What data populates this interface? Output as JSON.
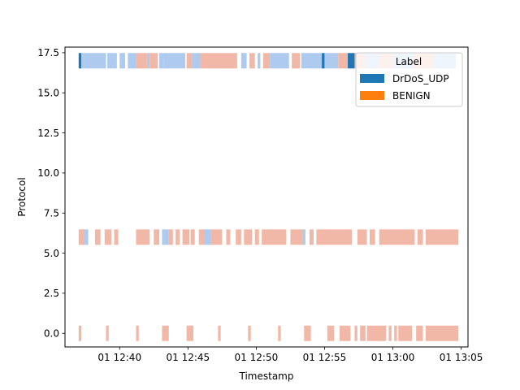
{
  "chart_data": {
    "type": "heatmap",
    "title": "",
    "xlabel": "Timestamp",
    "ylabel": "Protocol",
    "x_axis": {
      "type": "time",
      "range": [
        "12:36:00",
        "13:05:30"
      ],
      "ticks": [
        "12:40",
        "12:45",
        "12:50",
        "12:55",
        "13:00",
        "13:05"
      ],
      "tick_labels": [
        "01 12:40",
        "01 12:45",
        "01 12:50",
        "01 12:55",
        "01 13:00",
        "01 13:05"
      ]
    },
    "y_axis": {
      "range": [
        -0.85,
        17.85
      ],
      "ticks": [
        0.0,
        2.5,
        5.0,
        7.5,
        10.0,
        12.5,
        15.0,
        17.5
      ],
      "tick_labels": [
        "0.0",
        "2.5",
        "5.0",
        "7.5",
        "10.0",
        "12.5",
        "15.0",
        "17.5"
      ]
    },
    "grid": false,
    "legend": {
      "title": "Label",
      "placement": "top-right",
      "entries": [
        {
          "name": "DrDoS_UDP",
          "color": "#1f77b4"
        },
        {
          "name": "BENIGN",
          "color": "#ff7f0e"
        }
      ]
    },
    "colors": {
      "udp_dense": "#1f77b4",
      "udp_light": "#aecbef",
      "benign": "#f2b8a7",
      "axis": "#000000"
    },
    "bands": [
      {
        "protocol": 17,
        "segments": [
          {
            "start": "12:37:00",
            "end": "12:37:12",
            "label": "DrDoS_UDP",
            "intensity": "high"
          },
          {
            "start": "12:37:12",
            "end": "12:39:00",
            "label": "DrDoS_UDP",
            "intensity": "low"
          },
          {
            "start": "12:39:06",
            "end": "12:39:48",
            "label": "DrDoS_UDP",
            "intensity": "low"
          },
          {
            "start": "12:40:00",
            "end": "12:40:24",
            "label": "DrDoS_UDP",
            "intensity": "low"
          },
          {
            "start": "12:40:36",
            "end": "12:41:12",
            "label": "DrDoS_UDP",
            "intensity": "low"
          },
          {
            "start": "12:41:12",
            "end": "12:42:00",
            "label": "BENIGN"
          },
          {
            "start": "12:42:00",
            "end": "12:42:12",
            "label": "DrDoS_UDP",
            "intensity": "low"
          },
          {
            "start": "12:42:12",
            "end": "12:42:48",
            "label": "BENIGN"
          },
          {
            "start": "12:42:54",
            "end": "12:43:12",
            "label": "DrDoS_UDP",
            "intensity": "low"
          },
          {
            "start": "12:43:12",
            "end": "12:44:48",
            "label": "DrDoS_UDP",
            "intensity": "low"
          },
          {
            "start": "12:44:54",
            "end": "12:45:18",
            "label": "BENIGN"
          },
          {
            "start": "12:45:18",
            "end": "12:45:54",
            "label": "DrDoS_UDP",
            "intensity": "low"
          },
          {
            "start": "12:45:54",
            "end": "12:48:36",
            "label": "BENIGN"
          },
          {
            "start": "12:48:54",
            "end": "12:49:18",
            "label": "DrDoS_UDP",
            "intensity": "low"
          },
          {
            "start": "12:49:30",
            "end": "12:49:54",
            "label": "BENIGN"
          },
          {
            "start": "12:50:06",
            "end": "12:50:18",
            "label": "DrDoS_UDP",
            "intensity": "low"
          },
          {
            "start": "12:50:30",
            "end": "12:51:00",
            "label": "BENIGN"
          },
          {
            "start": "12:51:00",
            "end": "12:52:24",
            "label": "DrDoS_UDP",
            "intensity": "low"
          },
          {
            "start": "12:52:36",
            "end": "12:53:12",
            "label": "BENIGN"
          },
          {
            "start": "12:53:18",
            "end": "12:54:48",
            "label": "DrDoS_UDP",
            "intensity": "low"
          },
          {
            "start": "12:54:48",
            "end": "12:55:00",
            "label": "DrDoS_UDP",
            "intensity": "high"
          },
          {
            "start": "12:55:00",
            "end": "12:56:00",
            "label": "DrDoS_UDP",
            "intensity": "low"
          },
          {
            "start": "12:56:00",
            "end": "12:56:42",
            "label": "BENIGN"
          },
          {
            "start": "12:56:42",
            "end": "12:57:12",
            "label": "DrDoS_UDP",
            "intensity": "high"
          },
          {
            "start": "12:57:12",
            "end": "12:58:00",
            "label": "BENIGN"
          },
          {
            "start": "12:58:00",
            "end": "12:59:00",
            "label": "DrDoS_UDP",
            "intensity": "low"
          },
          {
            "start": "12:59:00",
            "end": "13:00:00",
            "label": "BENIGN"
          },
          {
            "start": "13:00:00",
            "end": "13:01:30",
            "label": "DrDoS_UDP",
            "intensity": "low"
          },
          {
            "start": "13:01:30",
            "end": "13:03:00",
            "label": "BENIGN"
          },
          {
            "start": "13:03:00",
            "end": "13:04:36",
            "label": "DrDoS_UDP",
            "intensity": "low"
          }
        ]
      },
      {
        "protocol": 6,
        "segments": [
          {
            "start": "12:37:00",
            "end": "12:37:24",
            "label": "BENIGN"
          },
          {
            "start": "12:37:24",
            "end": "12:37:42",
            "label": "DrDoS_UDP",
            "intensity": "low"
          },
          {
            "start": "12:38:12",
            "end": "12:38:36",
            "label": "BENIGN"
          },
          {
            "start": "12:38:54",
            "end": "12:39:24",
            "label": "BENIGN"
          },
          {
            "start": "12:39:36",
            "end": "12:39:54",
            "label": "BENIGN"
          },
          {
            "start": "12:41:12",
            "end": "12:42:12",
            "label": "BENIGN"
          },
          {
            "start": "12:42:30",
            "end": "12:42:54",
            "label": "BENIGN"
          },
          {
            "start": "12:43:06",
            "end": "12:43:36",
            "label": "DrDoS_UDP",
            "intensity": "low"
          },
          {
            "start": "12:43:36",
            "end": "12:43:54",
            "label": "BENIGN"
          },
          {
            "start": "12:44:06",
            "end": "12:44:24",
            "label": "BENIGN"
          },
          {
            "start": "12:44:36",
            "end": "12:45:06",
            "label": "BENIGN"
          },
          {
            "start": "12:45:12",
            "end": "12:45:30",
            "label": "BENIGN"
          },
          {
            "start": "12:45:48",
            "end": "12:46:12",
            "label": "BENIGN"
          },
          {
            "start": "12:46:12",
            "end": "12:46:42",
            "label": "DrDoS_UDP",
            "intensity": "low"
          },
          {
            "start": "12:46:42",
            "end": "12:47:30",
            "label": "BENIGN"
          },
          {
            "start": "12:47:48",
            "end": "12:48:06",
            "label": "BENIGN"
          },
          {
            "start": "12:48:30",
            "end": "12:48:54",
            "label": "BENIGN"
          },
          {
            "start": "12:49:06",
            "end": "12:49:42",
            "label": "BENIGN"
          },
          {
            "start": "12:49:54",
            "end": "12:50:12",
            "label": "BENIGN"
          },
          {
            "start": "12:50:24",
            "end": "12:52:12",
            "label": "BENIGN"
          },
          {
            "start": "12:52:30",
            "end": "12:53:24",
            "label": "BENIGN"
          },
          {
            "start": "12:53:24",
            "end": "12:53:36",
            "label": "DrDoS_UDP",
            "intensity": "low"
          },
          {
            "start": "12:53:54",
            "end": "12:54:12",
            "label": "BENIGN"
          },
          {
            "start": "12:54:24",
            "end": "12:57:00",
            "label": "BENIGN"
          },
          {
            "start": "12:57:24",
            "end": "12:58:06",
            "label": "BENIGN"
          },
          {
            "start": "12:58:18",
            "end": "12:58:42",
            "label": "BENIGN"
          },
          {
            "start": "12:59:00",
            "end": "13:01:36",
            "label": "BENIGN"
          },
          {
            "start": "13:01:48",
            "end": "13:02:12",
            "label": "BENIGN"
          },
          {
            "start": "13:02:24",
            "end": "13:04:48",
            "label": "BENIGN"
          }
        ]
      },
      {
        "protocol": 0,
        "segments": [
          {
            "start": "12:37:00",
            "end": "12:37:12",
            "label": "BENIGN"
          },
          {
            "start": "12:39:00",
            "end": "12:39:12",
            "label": "BENIGN"
          },
          {
            "start": "12:41:12",
            "end": "12:41:24",
            "label": "BENIGN"
          },
          {
            "start": "12:43:06",
            "end": "12:43:36",
            "label": "BENIGN"
          },
          {
            "start": "12:44:54",
            "end": "12:45:24",
            "label": "BENIGN"
          },
          {
            "start": "12:47:12",
            "end": "12:47:24",
            "label": "BENIGN"
          },
          {
            "start": "12:49:24",
            "end": "12:49:36",
            "label": "BENIGN"
          },
          {
            "start": "12:51:36",
            "end": "12:51:48",
            "label": "BENIGN"
          },
          {
            "start": "12:53:30",
            "end": "12:54:00",
            "label": "BENIGN"
          },
          {
            "start": "12:55:12",
            "end": "12:55:42",
            "label": "BENIGN"
          },
          {
            "start": "12:56:06",
            "end": "12:56:54",
            "label": "BENIGN"
          },
          {
            "start": "12:57:12",
            "end": "12:57:24",
            "label": "BENIGN"
          },
          {
            "start": "12:57:36",
            "end": "12:58:00",
            "label": "BENIGN"
          },
          {
            "start": "12:58:06",
            "end": "12:59:30",
            "label": "BENIGN"
          },
          {
            "start": "12:59:42",
            "end": "12:59:54",
            "label": "BENIGN"
          },
          {
            "start": "13:00:06",
            "end": "13:00:18",
            "label": "BENIGN"
          },
          {
            "start": "13:00:24",
            "end": "13:01:24",
            "label": "BENIGN"
          },
          {
            "start": "13:01:42",
            "end": "13:02:12",
            "label": "BENIGN"
          },
          {
            "start": "13:02:24",
            "end": "13:04:48",
            "label": "BENIGN"
          }
        ]
      }
    ]
  }
}
